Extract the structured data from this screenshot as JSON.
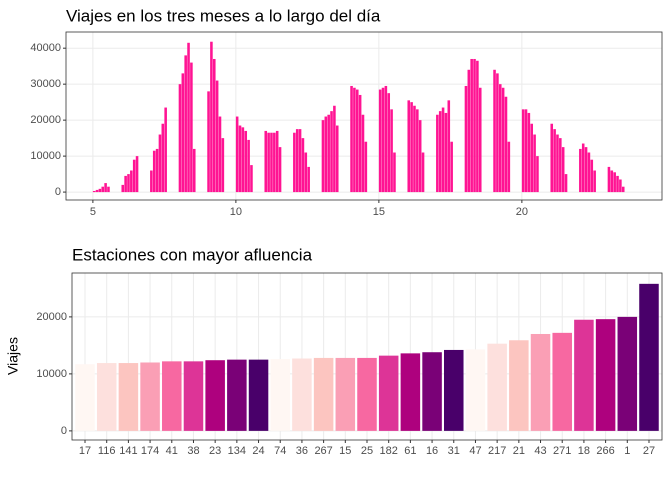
{
  "chart_data": [
    {
      "type": "bar",
      "title": "Viajes en los tres meses a lo largo del día",
      "color": "#ff1493",
      "grid": true,
      "x": [
        5,
        5.1,
        5.2,
        5.3,
        5.4,
        5.5,
        6,
        6.1,
        6.2,
        6.3,
        6.4,
        6.5,
        7,
        7.1,
        7.2,
        7.3,
        7.4,
        7.5,
        8,
        8.1,
        8.2,
        8.3,
        8.4,
        8.5,
        9,
        9.1,
        9.2,
        9.3,
        9.4,
        9.5,
        10,
        10.1,
        10.2,
        10.3,
        10.4,
        10.5,
        11,
        11.1,
        11.2,
        11.3,
        11.4,
        11.5,
        12,
        12.1,
        12.2,
        12.3,
        12.4,
        12.5,
        13,
        13.1,
        13.2,
        13.3,
        13.4,
        13.5,
        14,
        14.1,
        14.2,
        14.3,
        14.4,
        14.5,
        15,
        15.1,
        15.2,
        15.3,
        15.4,
        15.5,
        16,
        16.1,
        16.2,
        16.3,
        16.4,
        16.5,
        17,
        17.1,
        17.2,
        17.3,
        17.4,
        17.5,
        18,
        18.1,
        18.2,
        18.3,
        18.4,
        18.5,
        19,
        19.1,
        19.2,
        19.3,
        19.4,
        19.5,
        20,
        20.1,
        20.2,
        20.3,
        20.4,
        20.5,
        21,
        21.1,
        21.2,
        21.3,
        21.4,
        21.5,
        22,
        22.1,
        22.2,
        22.3,
        22.4,
        22.5,
        23,
        23.1,
        23.2,
        23.3,
        23.4,
        23.5
      ],
      "values": [
        300,
        600,
        900,
        1500,
        2500,
        1500,
        2000,
        4500,
        5000,
        6000,
        9000,
        10000,
        6000,
        11500,
        12000,
        16000,
        19000,
        23500,
        30000,
        33000,
        38000,
        41500,
        36000,
        12000,
        28000,
        41800,
        37000,
        31000,
        21000,
        15000,
        21000,
        18500,
        18000,
        17000,
        14500,
        7500,
        17000,
        16500,
        16500,
        16500,
        17000,
        12500,
        16500,
        17500,
        17500,
        15000,
        11000,
        7000,
        20000,
        21000,
        21500,
        22500,
        24000,
        18500,
        29500,
        29000,
        28500,
        27000,
        21500,
        14000,
        28500,
        29000,
        29500,
        27500,
        23000,
        11000,
        25500,
        25000,
        24000,
        23000,
        20000,
        11000,
        21500,
        22500,
        23500,
        22000,
        25500,
        14000,
        29500,
        34000,
        37000,
        37000,
        36500,
        29000,
        34000,
        33000,
        30000,
        29000,
        26500,
        14000,
        23000,
        23000,
        22000,
        19000,
        16000,
        10000,
        19000,
        17500,
        16000,
        15000,
        12500,
        5000,
        12000,
        13500,
        12500,
        11000,
        9000,
        6000,
        7000,
        6000,
        5500,
        4500,
        3500,
        1500
      ],
      "xlim": [
        4.06,
        24.9
      ],
      "xticks": [
        5,
        10,
        15,
        20
      ],
      "ylim": [
        -2200,
        44500
      ],
      "yticks": [
        0,
        10000,
        20000,
        30000,
        40000
      ]
    },
    {
      "type": "bar",
      "title": "Estaciones con mayor afluencia",
      "y_label": "Viajes",
      "grid": true,
      "categories": [
        "17",
        "116",
        "141",
        "174",
        "41",
        "38",
        "23",
        "134",
        "24",
        "74",
        "36",
        "267",
        "15",
        "25",
        "182",
        "61",
        "16",
        "31",
        "47",
        "217",
        "21",
        "43",
        "271",
        "18",
        "266",
        "1",
        "27"
      ],
      "values": [
        11700,
        11900,
        11900,
        12000,
        12200,
        12200,
        12400,
        12500,
        12500,
        12600,
        12700,
        12800,
        12800,
        12800,
        13200,
        13600,
        13800,
        14200,
        14300,
        15300,
        15900,
        17000,
        17200,
        19500,
        19600,
        20000,
        25800
      ],
      "colors": [
        "#fff7f3",
        "#fde0dd",
        "#fcc5c0",
        "#fa9fb5",
        "#f768a1",
        "#dd3497",
        "#ae017e",
        "#7a0177",
        "#49006a",
        "#fff7f3",
        "#fde0dd",
        "#fcc5c0",
        "#fa9fb5",
        "#f768a1",
        "#dd3497",
        "#ae017e",
        "#7a0177",
        "#49006a",
        "#fff7f3",
        "#fde0dd",
        "#fcc5c0",
        "#fa9fb5",
        "#f768a1",
        "#dd3497",
        "#ae017e",
        "#7a0177",
        "#49006a"
      ],
      "ylim": [
        -1600,
        27700
      ],
      "yticks": [
        0,
        10000,
        20000
      ]
    }
  ]
}
